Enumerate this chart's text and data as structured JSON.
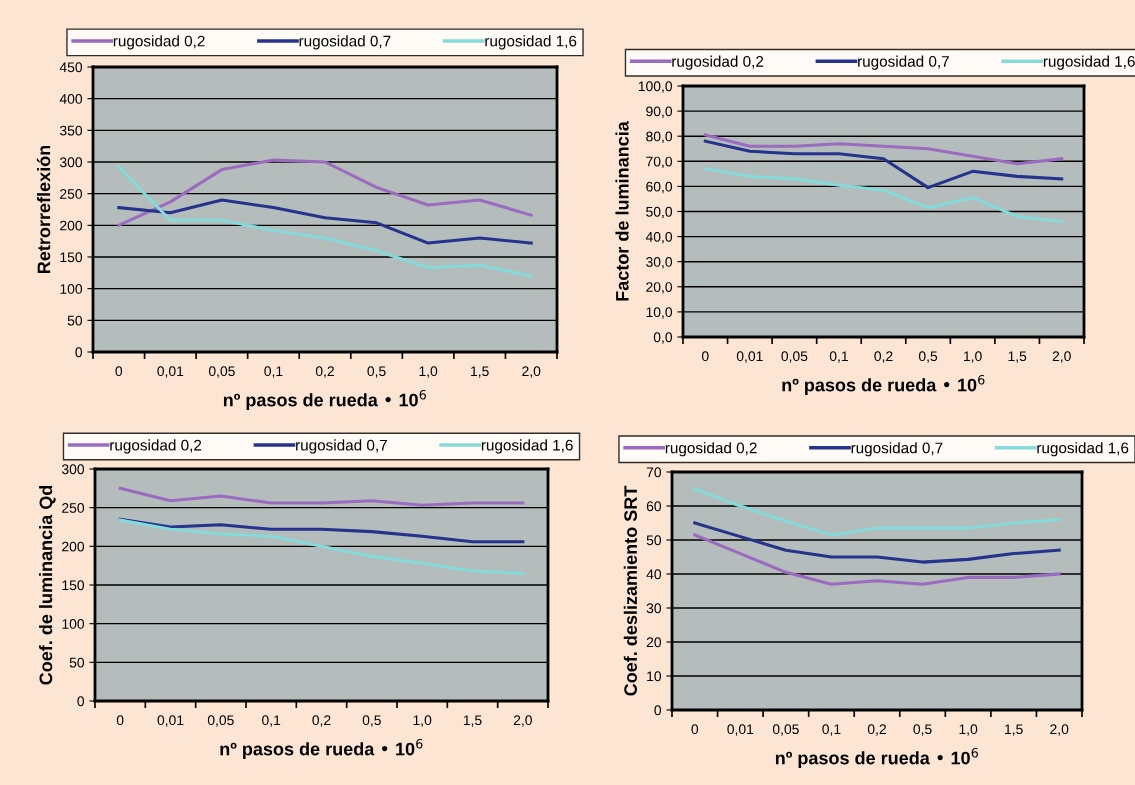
{
  "chart_data": [
    {
      "type": "line",
      "xlabel": "nº pasos de rueda • 10$^{6}$",
      "ylabel": "Retrorreflexión",
      "categories": [
        "0",
        "0,01",
        "0,05",
        "0,1",
        "0,2",
        "0,5",
        "1,0",
        "1,5",
        "2,0"
      ],
      "ylim": [
        0,
        450
      ],
      "yticks": [
        0,
        50,
        100,
        150,
        200,
        250,
        300,
        350,
        400,
        450
      ],
      "grid": "y",
      "legend": "top",
      "series": [
        {
          "name": "rugosidad 0,2",
          "color": "#9b6bc0",
          "values": [
            200,
            237,
            288,
            303,
            300,
            260,
            232,
            240,
            216
          ]
        },
        {
          "name": "rugosidad 0,7",
          "color": "#26338c",
          "values": [
            228,
            220,
            240,
            228,
            212,
            204,
            172,
            180,
            172
          ]
        },
        {
          "name": "rugosidad 1,6",
          "color": "#85dada",
          "values": [
            292,
            208,
            208,
            192,
            180,
            160,
            133,
            137,
            120
          ]
        }
      ]
    },
    {
      "type": "line",
      "xlabel": "nº pasos de rueda • 10$^{6}$",
      "ylabel": "Factor de luminancia",
      "categories": [
        "0",
        "0,01",
        "0,05",
        "0,1",
        "0,2",
        "0,5",
        "1,0",
        "1,5",
        "2,0"
      ],
      "ylim": [
        0,
        100
      ],
      "yticks": [
        {
          "value": 0,
          "label": "0,0"
        },
        {
          "value": 10,
          "label": "10,0"
        },
        {
          "value": 20,
          "label": "20,0"
        },
        {
          "value": 30,
          "label": "30,0"
        },
        {
          "value": 40,
          "label": "40,0"
        },
        {
          "value": 50,
          "label": "50,0"
        },
        {
          "value": 60,
          "label": "60,0"
        },
        {
          "value": 70,
          "label": "70,0"
        },
        {
          "value": 80,
          "label": "80,0"
        },
        {
          "value": 90,
          "label": "90,0"
        },
        {
          "value": 100,
          "label": "100,0"
        }
      ],
      "grid": "y",
      "legend": "top",
      "series": [
        {
          "name": "rugosidad 0,2",
          "color": "#9b6bc0",
          "values": [
            80.5,
            76,
            76,
            77,
            76,
            75,
            72,
            69,
            71
          ]
        },
        {
          "name": "rugosidad 0,7",
          "color": "#26338c",
          "values": [
            78,
            74,
            73,
            73,
            71,
            59.5,
            66,
            64,
            63
          ]
        },
        {
          "name": "rugosidad 1,6",
          "color": "#85dada",
          "values": [
            67,
            64,
            63,
            60.5,
            58.5,
            51.5,
            55.5,
            48,
            46
          ]
        }
      ]
    },
    {
      "type": "line",
      "xlabel": "nº pasos de rueda • 10$^{6}$",
      "ylabel": "Coef. de luminancia Qd",
      "categories": [
        "0",
        "0,01",
        "0,05",
        "0,1",
        "0,2",
        "0,5",
        "1,0",
        "1,5",
        "2,0"
      ],
      "ylim": [
        0,
        300
      ],
      "yticks": [
        0,
        50,
        100,
        150,
        200,
        250,
        300
      ],
      "grid": "y",
      "legend": "top",
      "series": [
        {
          "name": "rugosidad 0,2",
          "color": "#9b6bc0",
          "values": [
            275,
            259,
            265,
            256,
            256,
            259,
            253,
            256,
            256
          ]
        },
        {
          "name": "rugosidad 0,7",
          "color": "#26338c",
          "values": [
            235,
            225,
            228,
            222,
            222,
            219,
            213,
            206,
            206
          ]
        },
        {
          "name": "rugosidad 1,6",
          "color": "#85dada",
          "values": [
            234,
            222,
            216,
            213,
            200,
            187,
            178,
            168,
            165
          ]
        }
      ]
    },
    {
      "type": "line",
      "xlabel": "nº pasos de rueda • 10$^{6}$",
      "ylabel": "Coef. deslizamiento SRT",
      "categories": [
        "0",
        "0,01",
        "0,05",
        "0,1",
        "0,2",
        "0,5",
        "1,0",
        "1,5",
        "2,0"
      ],
      "ylim": [
        0,
        70
      ],
      "yticks": [
        0,
        10,
        20,
        30,
        40,
        50,
        60,
        70
      ],
      "grid": "y",
      "legend": "top",
      "series": [
        {
          "name": "rugosidad 0,2",
          "color": "#9b6bc0",
          "values": [
            51.5,
            46,
            40.5,
            37,
            38,
            37,
            39,
            39,
            40
          ]
        },
        {
          "name": "rugosidad 0,7",
          "color": "#26338c",
          "values": [
            55,
            51,
            47,
            45,
            45,
            43.5,
            44.3,
            46,
            47
          ]
        },
        {
          "name": "rugosidad 1,6",
          "color": "#85dada",
          "values": [
            65,
            60,
            55.5,
            51.5,
            53.5,
            53.5,
            53.5,
            55,
            56
          ]
        }
      ]
    }
  ]
}
